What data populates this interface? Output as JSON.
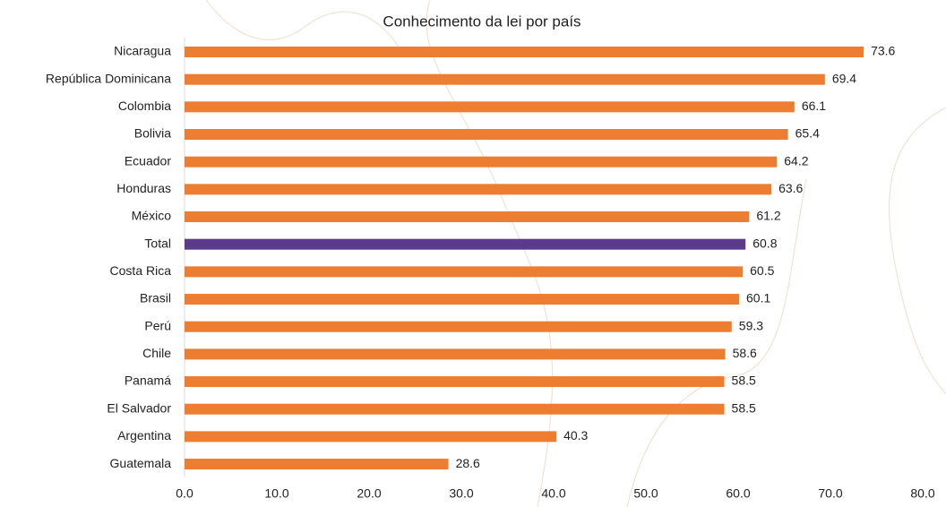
{
  "chart_data": {
    "type": "bar",
    "orientation": "horizontal",
    "title": "Conhecimento da lei por país",
    "categories": [
      "Nicaragua",
      "República Dominicana",
      "Colombia",
      "Bolivia",
      "Ecuador",
      "Honduras",
      "México",
      "Total",
      "Costa Rica",
      "Brasil",
      "Perú",
      "Chile",
      "Panamá",
      "El Salvador",
      "Argentina",
      "Guatemala"
    ],
    "values": [
      73.6,
      69.4,
      66.1,
      65.4,
      64.2,
      63.6,
      61.2,
      60.8,
      60.5,
      60.1,
      59.3,
      58.6,
      58.5,
      58.5,
      40.3,
      28.6
    ],
    "colors": [
      "#ED7D31",
      "#ED7D31",
      "#ED7D31",
      "#ED7D31",
      "#ED7D31",
      "#ED7D31",
      "#ED7D31",
      "#5B3A8C",
      "#ED7D31",
      "#ED7D31",
      "#ED7D31",
      "#ED7D31",
      "#ED7D31",
      "#ED7D31",
      "#ED7D31",
      "#ED7D31"
    ],
    "xlim": [
      0,
      80
    ],
    "xticks": [
      {
        "value": 0,
        "label": "0.0"
      },
      {
        "value": 10,
        "label": "10.0"
      },
      {
        "value": 20,
        "label": "20.0"
      },
      {
        "value": 30,
        "label": "30.0"
      },
      {
        "value": 40,
        "label": "40.0"
      },
      {
        "value": 50,
        "label": "50.0"
      },
      {
        "value": 60,
        "label": "60.0"
      },
      {
        "value": 70,
        "label": "70.0"
      },
      {
        "value": 80,
        "label": "80.0"
      }
    ],
    "grid": false
  }
}
